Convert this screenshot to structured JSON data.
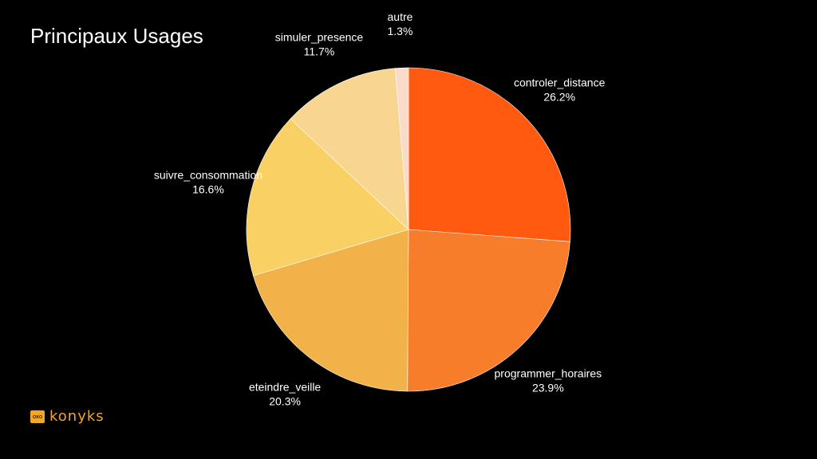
{
  "title": "Principaux Usages",
  "brand": {
    "badge": "oxo",
    "name": "konyks",
    "color": "#f5a623"
  },
  "chart_data": {
    "type": "pie",
    "title": "Principaux Usages",
    "start_angle": "12 o'clock",
    "direction": "clockwise",
    "slices": [
      {
        "label": "controler_distance",
        "value": 26.2,
        "value_label": "26.2%",
        "color": "#ff5a10"
      },
      {
        "label": "programmer_horaires",
        "value": 23.9,
        "value_label": "23.9%",
        "color": "#f77d2b"
      },
      {
        "label": "eteindre_veille",
        "value": 20.3,
        "value_label": "20.3%",
        "color": "#f2b24a"
      },
      {
        "label": "suivre_consommation",
        "value": 16.6,
        "value_label": "16.6%",
        "color": "#f9d064"
      },
      {
        "label": "simuler_presence",
        "value": 11.7,
        "value_label": "11.7%",
        "color": "#f9d68f"
      },
      {
        "label": "autre",
        "value": 1.3,
        "value_label": "1.3%",
        "color": "#fadbcb"
      }
    ]
  }
}
